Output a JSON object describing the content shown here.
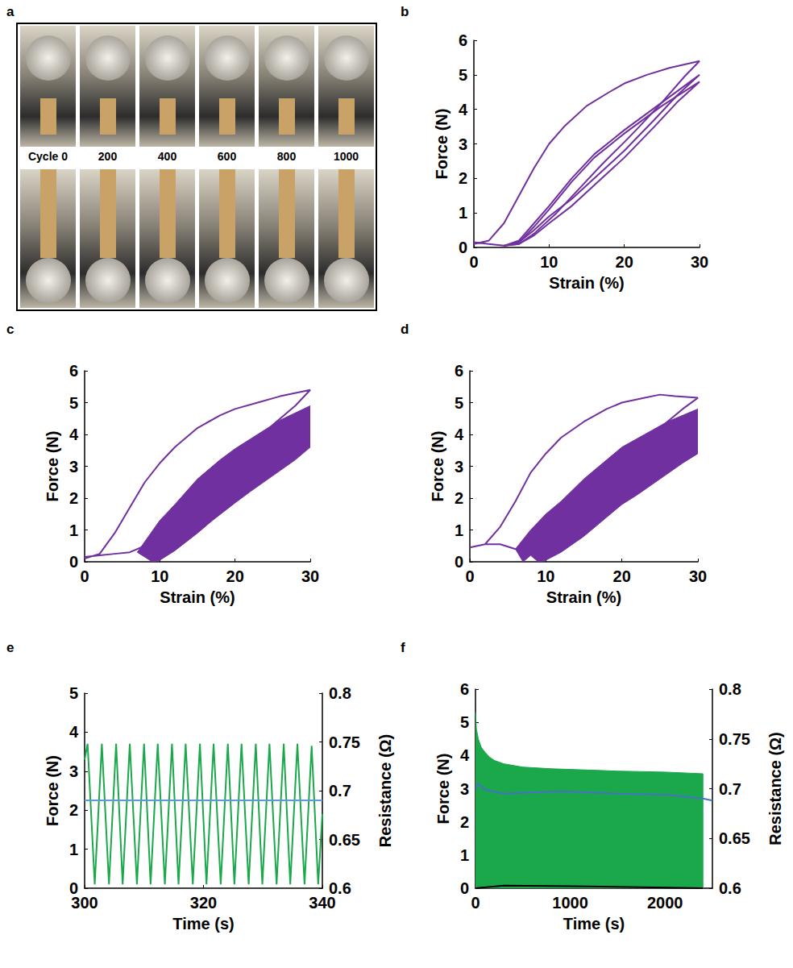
{
  "chart_data": [
    {
      "panel": "a",
      "type": "image",
      "labels": [
        "Cycle 0",
        "200",
        "400",
        "600",
        "800",
        "1000"
      ]
    },
    {
      "panel": "b",
      "type": "line",
      "x_label": "Strain (%)",
      "y_label": "Force (N)",
      "xlim": [
        0,
        30
      ],
      "xticks": [
        0,
        10,
        20,
        30
      ],
      "ylim": [
        0,
        6
      ],
      "yticks": [
        0,
        1,
        2,
        3,
        4,
        5,
        6
      ],
      "grid": false,
      "series": [
        {
          "color": "#7030a0",
          "x": [
            0,
            2,
            4,
            6,
            8,
            10,
            12,
            15,
            18,
            20,
            23,
            26,
            30,
            28,
            25,
            22,
            20,
            17,
            14,
            11,
            8,
            6,
            4,
            2,
            0
          ],
          "values": [
            0.1,
            0.2,
            0.7,
            1.5,
            2.3,
            3.0,
            3.5,
            4.1,
            4.5,
            4.75,
            5.0,
            5.2,
            5.4,
            4.95,
            4.2,
            3.5,
            3.05,
            2.4,
            1.7,
            1.0,
            0.4,
            0.1,
            0.05,
            0.1,
            0.15
          ]
        },
        {
          "color": "#7030a0",
          "x": [
            4,
            6,
            8,
            10,
            13,
            16,
            20,
            25,
            30,
            27,
            24,
            20,
            17,
            13,
            10,
            8,
            6,
            4
          ],
          "values": [
            0.05,
            0.2,
            0.7,
            1.2,
            2.0,
            2.7,
            3.4,
            4.2,
            5.0,
            4.4,
            3.7,
            2.8,
            2.2,
            1.4,
            0.9,
            0.5,
            0.15,
            0.05
          ]
        },
        {
          "color": "#7030a0",
          "x": [
            4,
            6,
            8,
            10,
            13,
            16,
            20,
            25,
            30,
            27,
            24,
            20,
            17,
            13,
            10,
            8,
            6,
            4
          ],
          "values": [
            0.05,
            0.15,
            0.6,
            1.1,
            1.9,
            2.6,
            3.3,
            4.1,
            4.8,
            4.2,
            3.5,
            2.6,
            2.0,
            1.2,
            0.7,
            0.35,
            0.1,
            0.05
          ]
        }
      ]
    },
    {
      "panel": "c",
      "type": "line",
      "x_label": "Strain (%)",
      "y_label": "Force (N)",
      "xlim": [
        0,
        30
      ],
      "xticks": [
        0,
        10,
        20,
        30
      ],
      "ylim": [
        0,
        6
      ],
      "yticks": [
        0,
        1,
        2,
        3,
        4,
        5,
        6
      ],
      "grid": false,
      "series": [
        {
          "color": "#7030a0",
          "x": [
            0,
            2,
            4,
            6,
            8,
            10,
            12,
            15,
            18,
            20,
            23,
            26,
            30,
            28,
            25,
            22,
            20,
            17,
            14,
            11,
            8,
            6,
            4,
            2,
            0
          ],
          "values": [
            0.1,
            0.25,
            0.9,
            1.7,
            2.5,
            3.1,
            3.6,
            4.2,
            4.6,
            4.8,
            5.0,
            5.2,
            5.4,
            4.9,
            4.3,
            3.6,
            3.1,
            2.5,
            1.8,
            1.1,
            0.5,
            0.3,
            0.25,
            0.2,
            0.15
          ]
        },
        {
          "color": "#7030a0",
          "type": "band",
          "x": [
            7,
            10,
            12,
            15,
            18,
            20,
            23,
            26,
            30,
            30,
            28,
            25,
            22,
            20,
            17,
            15,
            12,
            10,
            9,
            7
          ],
          "values": [
            0.3,
            1.3,
            1.8,
            2.6,
            3.2,
            3.55,
            4.0,
            4.45,
            4.9,
            3.6,
            3.2,
            2.7,
            2.2,
            1.85,
            1.3,
            0.9,
            0.35,
            0.05,
            0.0,
            0.3
          ]
        }
      ]
    },
    {
      "panel": "d",
      "type": "line",
      "x_label": "Strain (%)",
      "y_label": "Force (N)",
      "xlim": [
        0,
        30
      ],
      "xticks": [
        0,
        10,
        20,
        30
      ],
      "ylim": [
        0,
        6
      ],
      "yticks": [
        0,
        1,
        2,
        3,
        4,
        5,
        6
      ],
      "grid": false,
      "series": [
        {
          "color": "#7030a0",
          "x": [
            0,
            2,
            4,
            6,
            8,
            10,
            12,
            15,
            18,
            20,
            23,
            25,
            27,
            30,
            28,
            25,
            22,
            20,
            17,
            14,
            11,
            8,
            6,
            4,
            2,
            0
          ],
          "values": [
            0.45,
            0.55,
            1.1,
            1.9,
            2.8,
            3.4,
            3.9,
            4.4,
            4.8,
            5.0,
            5.15,
            5.25,
            5.2,
            5.15,
            4.8,
            4.2,
            3.5,
            3.0,
            2.4,
            1.7,
            1.0,
            0.5,
            0.4,
            0.55,
            0.55,
            0.45
          ]
        },
        {
          "color": "#7030a0",
          "type": "band",
          "x": [
            6,
            8,
            10,
            12,
            15,
            18,
            20,
            23,
            26,
            30,
            30,
            28,
            25,
            22,
            20,
            17,
            15,
            12,
            10,
            9,
            8,
            7,
            6
          ],
          "values": [
            0.4,
            1.0,
            1.5,
            1.9,
            2.6,
            3.2,
            3.6,
            4.0,
            4.4,
            4.8,
            3.4,
            3.1,
            2.6,
            2.1,
            1.8,
            1.2,
            0.8,
            0.3,
            0.05,
            0.0,
            0.2,
            0.0,
            0.4
          ]
        }
      ]
    },
    {
      "panel": "e",
      "type": "line",
      "x_label": "Time (s)",
      "y_label": "Force (N)",
      "y2_label": "Resistance (Ω)",
      "xlim": [
        300,
        340
      ],
      "xticks": [
        300,
        320,
        340
      ],
      "ylim": [
        0,
        5
      ],
      "yticks": [
        0,
        1,
        2,
        3,
        4,
        5
      ],
      "y2lim": [
        0.6,
        0.8
      ],
      "y2ticks": [
        0.6,
        0.65,
        0.7,
        0.75,
        0.8
      ],
      "grid": false,
      "series": [
        {
          "color": "#1ba84b",
          "x": [
            300,
            300.5,
            301.7,
            302.9,
            304.1,
            305.3,
            306.4,
            307.6,
            308.8,
            310.0,
            311.1,
            312.3,
            313.5,
            314.7,
            315.8,
            317.0,
            318.2,
            319.4,
            320.5,
            321.7,
            322.9,
            324.1,
            325.2,
            326.4,
            327.6,
            328.8,
            329.9,
            331.1,
            332.3,
            333.5,
            334.6,
            335.8,
            337.0,
            338.2,
            339.3,
            340
          ],
          "values": [
            3.3,
            3.7,
            0.1,
            3.7,
            0.1,
            3.7,
            0.1,
            3.7,
            0.1,
            3.7,
            0.1,
            3.7,
            0.1,
            3.7,
            0.1,
            3.7,
            0.1,
            3.7,
            0.1,
            3.7,
            0.1,
            3.7,
            0.1,
            3.7,
            0.1,
            3.7,
            0.1,
            3.7,
            0.1,
            3.7,
            0.1,
            3.7,
            0.1,
            3.65,
            0.1,
            1.9
          ]
        },
        {
          "color": "#5b9bd5",
          "axis": "y2",
          "x": [
            300,
            310,
            320,
            330,
            340
          ],
          "values": [
            0.69,
            0.69,
            0.69,
            0.69,
            0.69
          ]
        }
      ]
    },
    {
      "panel": "f",
      "type": "line",
      "x_label": "Time (s)",
      "y_label": "Force (N)",
      "y2_label": "Resistance (Ω)",
      "xlim": [
        0,
        2500
      ],
      "xticks": [
        0,
        1000,
        2000
      ],
      "ylim": [
        0,
        6
      ],
      "yticks": [
        0,
        1,
        2,
        3,
        4,
        5,
        6
      ],
      "y2lim": [
        0.6,
        0.8
      ],
      "y2ticks": [
        0.6,
        0.65,
        0.7,
        0.75,
        0.8
      ],
      "grid": false,
      "series": [
        {
          "color": "#1ba84b",
          "type": "area",
          "x": [
            0,
            10,
            30,
            60,
            100,
            150,
            200,
            300,
            500,
            800,
            1000,
            1500,
            2000,
            2400,
            2400
          ],
          "values": [
            5.3,
            4.8,
            4.5,
            4.25,
            4.1,
            3.95,
            3.85,
            3.75,
            3.65,
            3.6,
            3.58,
            3.53,
            3.5,
            3.45,
            0
          ]
        },
        {
          "color": "#000000",
          "x": [
            0,
            300,
            1000,
            2000,
            2400
          ],
          "values": [
            0.0,
            0.08,
            0.06,
            0.02,
            0.0
          ]
        },
        {
          "color": "#4472c4",
          "axis": "y2",
          "x": [
            0,
            30,
            100,
            300,
            500,
            800,
            1000,
            1500,
            2000,
            2400,
            2500
          ],
          "values": [
            0.7,
            0.705,
            0.699,
            0.695,
            0.696,
            0.697,
            0.697,
            0.695,
            0.694,
            0.69,
            0.688
          ]
        }
      ]
    }
  ]
}
